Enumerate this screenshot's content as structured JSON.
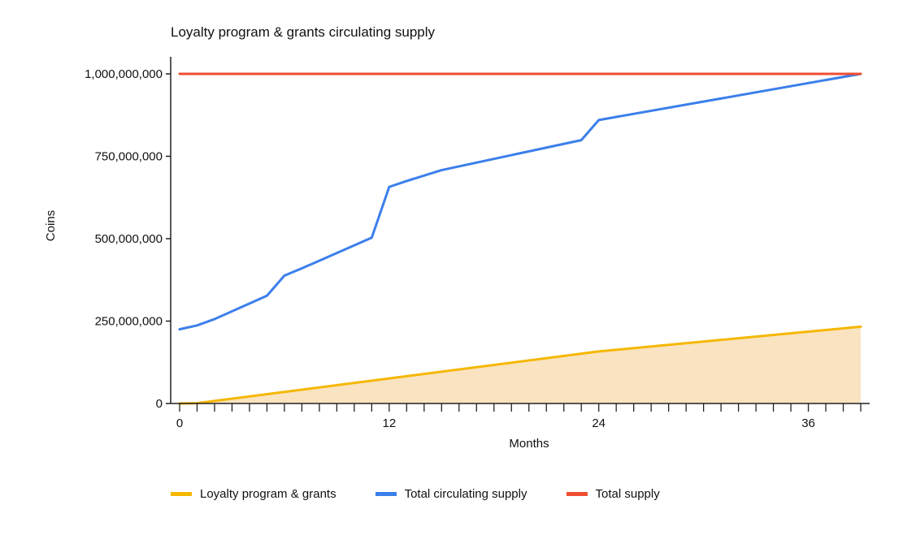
{
  "chart_data": {
    "type": "line",
    "title": "Loyalty program & grants circulating supply",
    "xlabel": "Months",
    "ylabel": "Coins",
    "xlim": [
      0,
      39
    ],
    "ylim": [
      0,
      1000000000
    ],
    "x_ticks": [
      0,
      12,
      24,
      36
    ],
    "y_ticks": [
      0,
      250000000,
      500000000,
      750000000,
      1000000000
    ],
    "y_tick_labels": [
      "0",
      "250,000,000",
      "500,000,000",
      "750,000,000",
      "1,000,000,000"
    ],
    "x_tick_labels": [
      "0",
      "12",
      "24",
      "36"
    ],
    "minor_tick_step": 1,
    "grid": false,
    "legend_position": "bottom",
    "series": [
      {
        "name": "Loyalty program & grants",
        "color": "#F5B700",
        "fill": "#FAE3C0",
        "area": true,
        "points": [
          [
            0,
            0
          ],
          [
            1,
            1000000
          ],
          [
            24,
            158000000
          ],
          [
            39,
            233000000
          ]
        ]
      },
      {
        "name": "Total circulating supply",
        "color": "#3B7FEB",
        "area": false,
        "points": [
          [
            0,
            225000000
          ],
          [
            1,
            237000000
          ],
          [
            2,
            256000000
          ],
          [
            5,
            327000000
          ],
          [
            6,
            388000000
          ],
          [
            7,
            410000000
          ],
          [
            11,
            503000000
          ],
          [
            12,
            657000000
          ],
          [
            13,
            675000000
          ],
          [
            15,
            708000000
          ],
          [
            23,
            799000000
          ],
          [
            24,
            860000000
          ],
          [
            39,
            1000000000
          ]
        ]
      },
      {
        "name": "Total supply",
        "color": "#F04E33",
        "area": false,
        "points": [
          [
            0,
            1000000000
          ],
          [
            39,
            1000000000
          ]
        ]
      }
    ]
  }
}
